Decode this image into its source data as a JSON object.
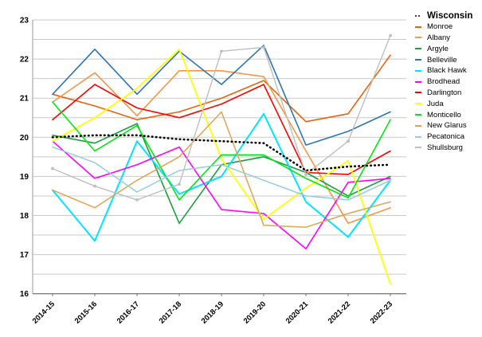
{
  "chart_data": {
    "type": "line",
    "title": "",
    "xlabel": "",
    "ylabel": "",
    "x_categories": [
      "2014-15",
      "2015-16",
      "2016-17",
      "2017-18",
      "2018-19",
      "2019-20",
      "2020-21",
      "2021-22",
      "2022-23"
    ],
    "ylim": [
      16,
      23
    ],
    "y_ticks": [
      16,
      17,
      18,
      19,
      20,
      21,
      22,
      23
    ],
    "grid": "horizontal lines every 0.5, light gray",
    "legend_position": "right",
    "series": [
      {
        "name": "Wisconsin",
        "color": "#000000",
        "style": "dotted",
        "width": 2.6,
        "legend_bold": true,
        "values": [
          20.0,
          20.05,
          20.05,
          19.95,
          19.9,
          19.85,
          19.15,
          19.25,
          19.3
        ]
      },
      {
        "name": "Monroe",
        "color": "#E8640C",
        "style": "solid",
        "width": 1.6,
        "values": [
          21.1,
          20.8,
          20.45,
          20.65,
          21.0,
          21.45,
          20.4,
          20.6,
          22.1
        ]
      },
      {
        "name": "Albany",
        "color": "#F79646",
        "style": "solid",
        "width": 1.6,
        "values": [
          20.9,
          21.65,
          20.55,
          21.7,
          21.7,
          21.55,
          19.65,
          17.8,
          18.2
        ]
      },
      {
        "name": "Argyle",
        "color": "#1E9E3E",
        "style": "solid",
        "width": 1.6,
        "values": [
          20.05,
          19.85,
          20.35,
          17.8,
          19.3,
          19.5,
          19.1,
          18.5,
          19.0
        ]
      },
      {
        "name": "Belleville",
        "color": "#2E75B6",
        "style": "solid",
        "width": 1.6,
        "values": [
          21.1,
          22.25,
          21.1,
          22.2,
          21.35,
          22.35,
          19.8,
          20.15,
          20.65
        ]
      },
      {
        "name": "Black Hawk",
        "color": "#00E5FF",
        "style": "solid",
        "width": 2.0,
        "values": [
          18.65,
          17.35,
          19.9,
          18.55,
          19.0,
          20.6,
          18.35,
          17.45,
          18.9
        ]
      },
      {
        "name": "Brodhead",
        "color": "#FF00FF",
        "style": "solid",
        "width": 1.6,
        "values": [
          19.9,
          18.95,
          19.3,
          19.75,
          18.15,
          18.05,
          17.15,
          18.85,
          18.95
        ]
      },
      {
        "name": "Darlington",
        "color": "#FF0000",
        "style": "solid",
        "width": 1.6,
        "values": [
          20.45,
          21.35,
          20.75,
          20.5,
          20.85,
          21.35,
          19.1,
          19.05,
          19.65
        ]
      },
      {
        "name": "Juda",
        "color": "#FFFF00",
        "style": "solid",
        "width": 1.8,
        "values": [
          19.9,
          20.5,
          21.25,
          22.25,
          19.45,
          17.9,
          18.7,
          19.4,
          16.25
        ]
      },
      {
        "name": "Monticello",
        "color": "#00E813",
        "style": "solid",
        "width": 1.6,
        "values": [
          20.9,
          19.65,
          20.3,
          18.4,
          19.55,
          19.55,
          18.95,
          18.45,
          20.45
        ]
      },
      {
        "name": "New Glarus",
        "color": "#E0A352",
        "style": "solid",
        "width": 1.5,
        "values": [
          18.65,
          18.2,
          18.9,
          19.5,
          20.65,
          17.75,
          17.7,
          18.05,
          18.35
        ]
      },
      {
        "name": "Pecatonica",
        "color": "#92CDDC",
        "style": "solid",
        "width": 1.5,
        "values": [
          19.75,
          19.35,
          18.6,
          19.15,
          19.3,
          18.9,
          18.5,
          18.4,
          18.9
        ]
      },
      {
        "name": "Shullsburg",
        "color": "#BFBFBF",
        "style": "solid",
        "width": 1.4,
        "marker": "circle",
        "values": [
          19.2,
          18.75,
          18.4,
          18.8,
          22.2,
          22.3,
          19.05,
          19.9,
          22.6
        ]
      }
    ]
  },
  "layout_note": "line chart, no title, legend at right"
}
